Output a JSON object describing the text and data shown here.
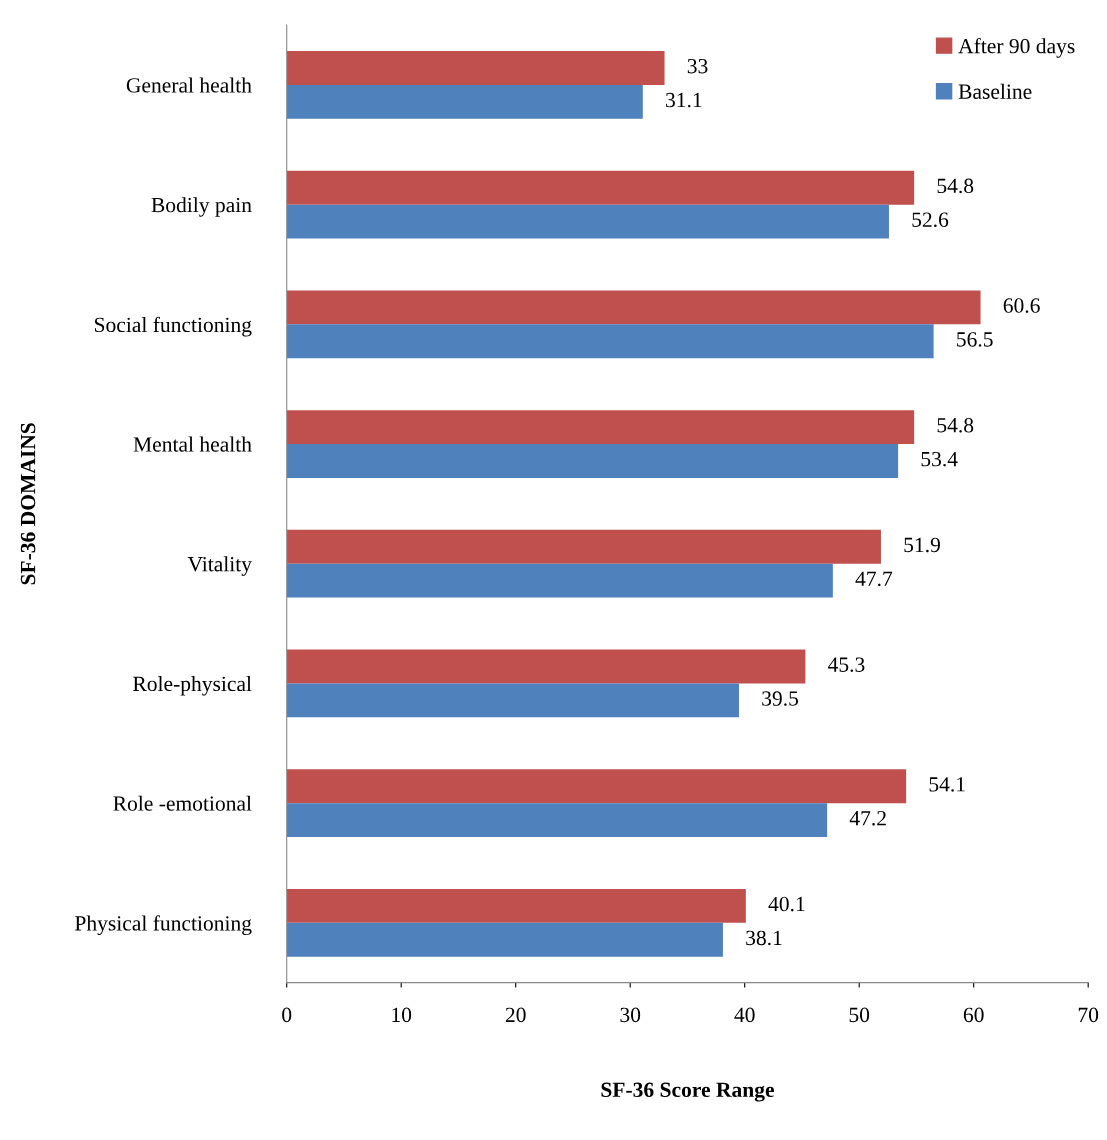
{
  "chart_data": {
    "type": "bar",
    "orientation": "horizontal",
    "xlabel": "SF-36 Score Range",
    "ylabel": "SF-36 DOMAINS",
    "categories": [
      "General health",
      "Bodily pain",
      "Social functioning",
      "Mental health",
      "Vitality",
      "Role-physical",
      "Role -emotional",
      "Physical functioning"
    ],
    "series": [
      {
        "name": "After 90 days",
        "color": "#c0504d",
        "values": [
          33,
          54.8,
          60.6,
          54.8,
          51.9,
          45.3,
          54.1,
          40.1
        ]
      },
      {
        "name": "Baseline",
        "color": "#4f81bd",
        "values": [
          31.1,
          52.6,
          56.5,
          53.4,
          47.7,
          39.5,
          47.2,
          38.1
        ]
      }
    ],
    "xlim": [
      0,
      70
    ],
    "xticks": [
      0,
      10,
      20,
      30,
      40,
      50,
      60,
      70
    ],
    "data_labels": true,
    "legend": "top right",
    "grid": false
  }
}
